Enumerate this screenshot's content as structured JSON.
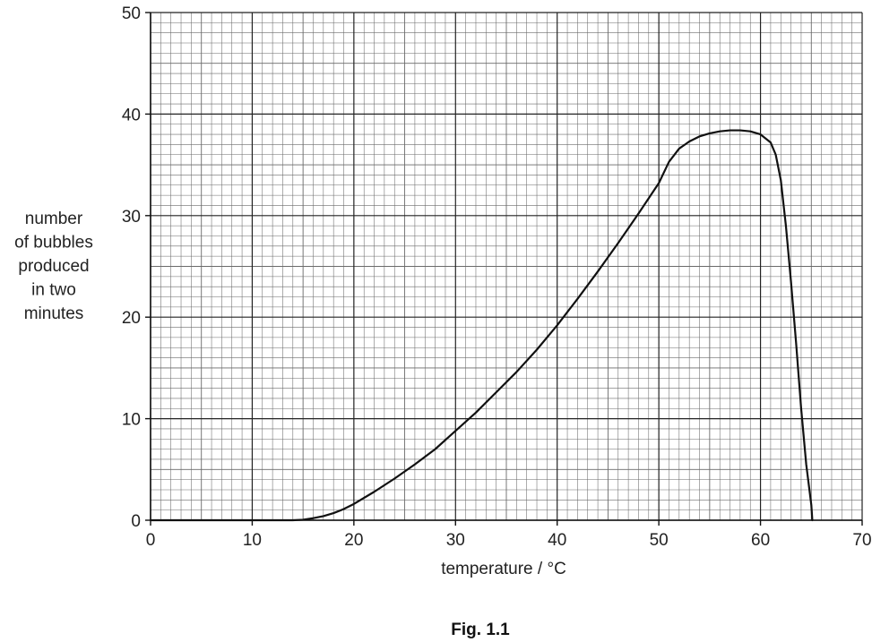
{
  "chart_data": {
    "type": "line",
    "title": "",
    "caption": "Fig. 1.1",
    "xlabel": "temperature / °C",
    "ylabel_lines": [
      "number",
      "of bubbles",
      "produced",
      "in two",
      "minutes"
    ],
    "xlim": [
      0,
      70
    ],
    "ylim": [
      0,
      50
    ],
    "x_ticks": [
      0,
      10,
      20,
      30,
      40,
      50,
      60,
      70
    ],
    "y_ticks": [
      0,
      10,
      20,
      30,
      40,
      50
    ],
    "grid": "graph paper (major every 10, minor every 1)",
    "series": [
      {
        "x": [
          0,
          10,
          14,
          15,
          16,
          17,
          18,
          19,
          20,
          22,
          24,
          26,
          28,
          30,
          32,
          34,
          36,
          38,
          40,
          42,
          44,
          46,
          48,
          50,
          51,
          52,
          53,
          54,
          55,
          56,
          57,
          58,
          59,
          60,
          61,
          61.5,
          62,
          62.5,
          63,
          63.5,
          64,
          64.5,
          65,
          65.1
        ],
        "y": [
          0,
          0,
          0,
          0.05,
          0.2,
          0.4,
          0.7,
          1.1,
          1.6,
          2.8,
          4.1,
          5.5,
          7.0,
          8.8,
          10.6,
          12.6,
          14.6,
          16.8,
          19.2,
          21.8,
          24.5,
          27.3,
          30.2,
          33.2,
          35.3,
          36.6,
          37.3,
          37.8,
          38.1,
          38.3,
          38.4,
          38.4,
          38.3,
          38.0,
          37.2,
          36.0,
          33.5,
          29.0,
          23.5,
          17.5,
          11.0,
          5.5,
          1.5,
          0
        ]
      }
    ]
  }
}
